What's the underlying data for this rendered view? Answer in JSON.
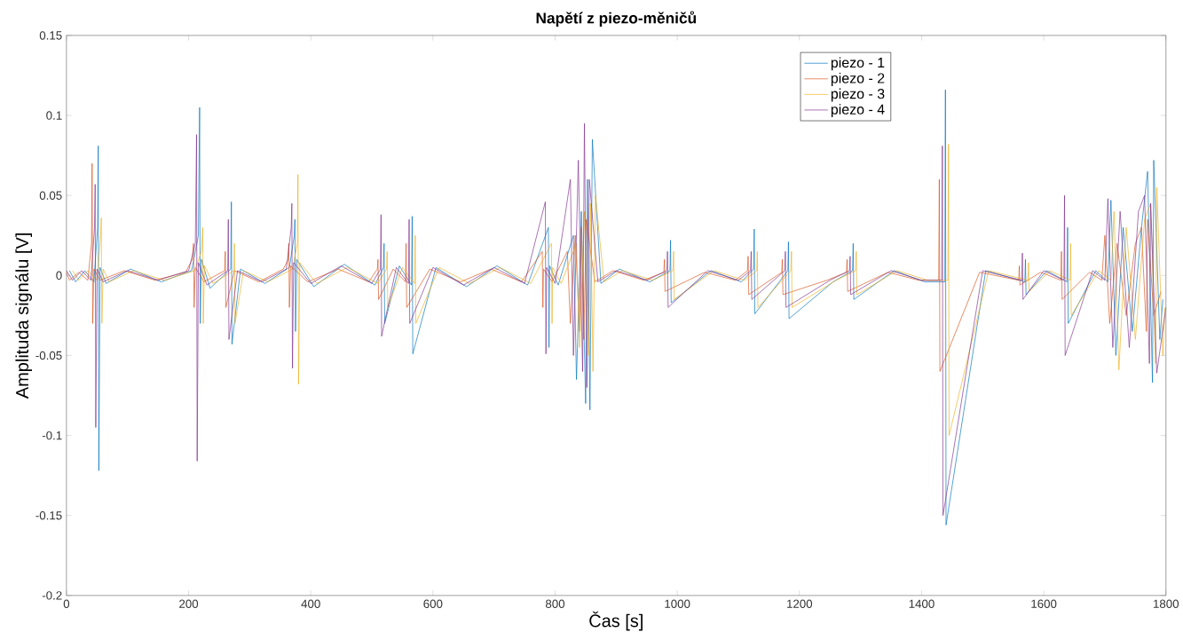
{
  "chart_data": {
    "type": "line",
    "title": "Napětí z piezo-měničů",
    "xlabel": "Čas [s]",
    "ylabel": "Amplituda signálu [V]",
    "series": [
      {
        "name": "piezo - 1",
        "color": "#0072bd",
        "x": [
          5,
          15,
          30,
          45,
          51,
          52,
          53,
          55,
          65,
          105,
          155,
          205,
          216,
          218,
          219,
          221,
          235,
          269,
          270,
          271,
          285,
          325,
          365,
          373,
          374,
          375,
          377,
          405,
          455,
          505,
          519,
          520,
          521,
          545,
          565,
          566,
          567,
          605,
          655,
          705,
          755,
          789,
          790,
          791,
          805,
          830,
          835,
          843,
          850,
          853,
          857,
          861,
          875,
          905,
          955,
          988,
          989,
          990,
          1055,
          1105,
          1125,
          1126,
          1127,
          1181,
          1182,
          1183,
          1255,
          1287,
          1288,
          1289,
          1355,
          1405,
          1438,
          1439,
          1440,
          1505,
          1569,
          1570,
          1571,
          1605,
          1638,
          1639,
          1640,
          1685,
          1705,
          1710,
          1718,
          1730,
          1745,
          1760,
          1770,
          1778,
          1780,
          1790,
          1795
        ],
        "values": [
          0.003,
          -0.004,
          0.003,
          -0.004,
          0.03,
          0.081,
          -0.122,
          0.005,
          -0.005,
          0.004,
          -0.004,
          0.003,
          0.025,
          0.105,
          -0.03,
          0.01,
          -0.008,
          0.004,
          0.046,
          -0.043,
          0.004,
          -0.005,
          0.005,
          0.025,
          0.035,
          -0.035,
          0.01,
          -0.007,
          0.007,
          -0.006,
          0.005,
          0.02,
          -0.03,
          0.006,
          -0.006,
          0.037,
          -0.049,
          0.005,
          -0.007,
          0.006,
          -0.006,
          0.03,
          -0.045,
          0.006,
          -0.006,
          0.025,
          -0.065,
          0.04,
          -0.08,
          0.06,
          -0.084,
          0.085,
          -0.005,
          0.004,
          -0.004,
          0.003,
          0.022,
          -0.017,
          0.003,
          -0.004,
          0.004,
          0.029,
          -0.024,
          0.003,
          0.021,
          -0.027,
          -0.004,
          0.003,
          0.02,
          -0.015,
          0.003,
          -0.004,
          -0.004,
          0.116,
          -0.156,
          0.003,
          -0.004,
          0.01,
          -0.012,
          0.003,
          -0.004,
          0.03,
          -0.03,
          0.003,
          -0.004,
          0.047,
          -0.05,
          0.03,
          -0.035,
          0.03,
          0.065,
          -0.067,
          0.072,
          -0.04,
          -0.015
        ]
      },
      {
        "name": "piezo - 2",
        "color": "#d95319",
        "x": [
          0,
          5,
          20,
          35,
          41,
          42,
          43,
          45,
          55,
          95,
          145,
          195,
          206,
          208,
          209,
          211,
          225,
          259,
          260,
          261,
          275,
          315,
          355,
          363,
          364,
          365,
          367,
          395,
          445,
          495,
          509,
          510,
          511,
          535,
          555,
          556,
          557,
          595,
          645,
          695,
          745,
          779,
          780,
          781,
          795,
          820,
          825,
          833,
          840,
          843,
          847,
          851,
          865,
          895,
          945,
          978,
          979,
          980,
          1045,
          1095,
          1115,
          1116,
          1117,
          1171,
          1172,
          1173,
          1245,
          1277,
          1278,
          1279,
          1345,
          1395,
          1428,
          1429,
          1430,
          1495,
          1559,
          1560,
          1561,
          1595,
          1628,
          1629,
          1630,
          1675,
          1695,
          1700,
          1708,
          1720,
          1735,
          1750,
          1760,
          1768,
          1770,
          1780,
          1792
        ],
        "values": [
          0.002,
          -0.003,
          0.002,
          -0.003,
          0.02,
          0.07,
          -0.03,
          0.004,
          -0.003,
          0.003,
          -0.003,
          0.002,
          0.01,
          0.02,
          -0.02,
          0.005,
          -0.004,
          0.003,
          0.015,
          -0.02,
          0.003,
          -0.004,
          0.004,
          0.01,
          0.02,
          -0.02,
          0.006,
          -0.004,
          0.004,
          -0.004,
          0.004,
          0.01,
          -0.015,
          0.004,
          -0.004,
          0.02,
          -0.02,
          0.004,
          -0.004,
          0.004,
          -0.004,
          0.015,
          -0.02,
          0.004,
          -0.004,
          0.015,
          -0.03,
          0.025,
          -0.035,
          0.03,
          -0.04,
          0.035,
          -0.004,
          0.003,
          -0.003,
          0.002,
          0.01,
          -0.01,
          0.002,
          -0.003,
          0.003,
          0.012,
          -0.012,
          0.002,
          0.01,
          -0.012,
          -0.003,
          0.002,
          0.01,
          -0.01,
          0.002,
          -0.003,
          -0.003,
          0.06,
          -0.06,
          0.002,
          -0.003,
          0.006,
          -0.006,
          0.002,
          -0.003,
          0.015,
          -0.015,
          0.002,
          -0.003,
          0.025,
          -0.03,
          0.02,
          -0.025,
          0.02,
          0.03,
          -0.035,
          0.035,
          -0.025,
          -0.01
        ]
      },
      {
        "name": "piezo - 3",
        "color": "#edb120",
        "x": [
          10,
          20,
          35,
          50,
          56,
          57,
          58,
          60,
          70,
          110,
          160,
          210,
          221,
          223,
          224,
          226,
          240,
          274,
          275,
          276,
          290,
          330,
          370,
          378,
          379,
          380,
          382,
          410,
          460,
          510,
          524,
          525,
          526,
          550,
          570,
          571,
          572,
          610,
          660,
          710,
          760,
          794,
          795,
          796,
          810,
          835,
          840,
          848,
          855,
          858,
          862,
          866,
          880,
          910,
          960,
          993,
          994,
          995,
          1060,
          1110,
          1130,
          1131,
          1132,
          1186,
          1187,
          1188,
          1260,
          1292,
          1293,
          1294,
          1360,
          1410,
          1443,
          1444,
          1445,
          1510,
          1574,
          1575,
          1576,
          1610,
          1643,
          1644,
          1645,
          1690,
          1710,
          1715,
          1723,
          1735,
          1750,
          1765,
          1775,
          1783,
          1785,
          1795,
          1798
        ],
        "values": [
          0.003,
          -0.003,
          0.003,
          -0.003,
          0.025,
          0.036,
          -0.03,
          0.004,
          -0.004,
          0.003,
          -0.003,
          0.003,
          0.015,
          0.03,
          -0.03,
          0.006,
          -0.005,
          0.003,
          0.02,
          -0.03,
          0.003,
          -0.004,
          0.004,
          0.02,
          0.063,
          -0.068,
          0.008,
          -0.005,
          0.005,
          -0.005,
          0.004,
          0.015,
          -0.02,
          0.005,
          -0.005,
          0.025,
          -0.03,
          0.005,
          -0.005,
          0.005,
          -0.005,
          0.02,
          -0.03,
          0.005,
          -0.005,
          0.02,
          -0.045,
          0.04,
          -0.05,
          0.045,
          -0.06,
          0.05,
          -0.004,
          0.003,
          -0.003,
          0.003,
          0.015,
          -0.015,
          0.003,
          -0.003,
          0.003,
          0.015,
          -0.02,
          0.003,
          0.015,
          -0.02,
          -0.003,
          0.003,
          0.015,
          -0.012,
          0.003,
          -0.003,
          -0.003,
          0.082,
          -0.1,
          0.003,
          -0.003,
          0.008,
          -0.01,
          0.003,
          -0.003,
          0.02,
          -0.025,
          0.003,
          -0.003,
          0.04,
          -0.059,
          0.03,
          -0.04,
          0.035,
          0.045,
          -0.055,
          0.055,
          -0.05,
          -0.02
        ]
      },
      {
        "name": "piezo - 4",
        "color": "#7e2f8e",
        "x": [
          0,
          10,
          25,
          40,
          46,
          47,
          48,
          50,
          60,
          100,
          150,
          200,
          211,
          213,
          214,
          216,
          230,
          264,
          265,
          266,
          280,
          320,
          360,
          368,
          369,
          370,
          372,
          400,
          450,
          500,
          514,
          515,
          516,
          540,
          560,
          561,
          562,
          600,
          650,
          700,
          750,
          784,
          785,
          786,
          800,
          825,
          830,
          838,
          845,
          848,
          852,
          856,
          870,
          900,
          950,
          983,
          984,
          985,
          1050,
          1100,
          1120,
          1121,
          1122,
          1176,
          1177,
          1178,
          1250,
          1282,
          1283,
          1284,
          1350,
          1400,
          1433,
          1434,
          1435,
          1500,
          1564,
          1565,
          1566,
          1600,
          1633,
          1634,
          1635,
          1680,
          1700,
          1705,
          1713,
          1725,
          1740,
          1755,
          1765,
          1773,
          1775,
          1785,
          1800
        ],
        "values": [
          0.003,
          -0.003,
          0.003,
          -0.003,
          0.03,
          0.057,
          -0.095,
          0.004,
          -0.004,
          0.003,
          -0.003,
          0.003,
          0.02,
          0.088,
          -0.116,
          0.008,
          -0.006,
          0.003,
          0.035,
          -0.04,
          0.003,
          -0.004,
          0.004,
          0.03,
          0.045,
          -0.058,
          0.008,
          -0.005,
          0.006,
          -0.005,
          0.004,
          0.038,
          -0.038,
          0.005,
          -0.005,
          0.035,
          -0.03,
          0.005,
          -0.006,
          0.005,
          -0.005,
          0.046,
          -0.049,
          0.005,
          -0.005,
          0.06,
          -0.05,
          0.072,
          -0.06,
          0.095,
          -0.07,
          0.06,
          -0.004,
          0.003,
          -0.003,
          0.003,
          0.015,
          -0.02,
          0.003,
          -0.003,
          0.003,
          0.015,
          -0.015,
          0.003,
          0.015,
          -0.02,
          -0.003,
          0.003,
          0.012,
          -0.012,
          0.003,
          -0.003,
          -0.003,
          0.081,
          -0.15,
          0.003,
          -0.003,
          0.014,
          -0.015,
          0.003,
          -0.003,
          0.05,
          -0.05,
          0.003,
          -0.003,
          0.048,
          -0.045,
          0.04,
          -0.045,
          0.04,
          0.05,
          -0.055,
          0.045,
          -0.061,
          -0.02
        ]
      }
    ],
    "xlim": [
      0,
      1800
    ],
    "xticks": [
      0,
      200,
      400,
      600,
      800,
      1000,
      1200,
      1400,
      1600,
      1800
    ],
    "ylim": [
      -0.2,
      0.15
    ],
    "yticks": [
      -0.2,
      -0.15,
      -0.1,
      -0.05,
      0,
      0.05,
      0.1,
      0.15
    ],
    "legend": "top right",
    "line_style": "solid"
  }
}
